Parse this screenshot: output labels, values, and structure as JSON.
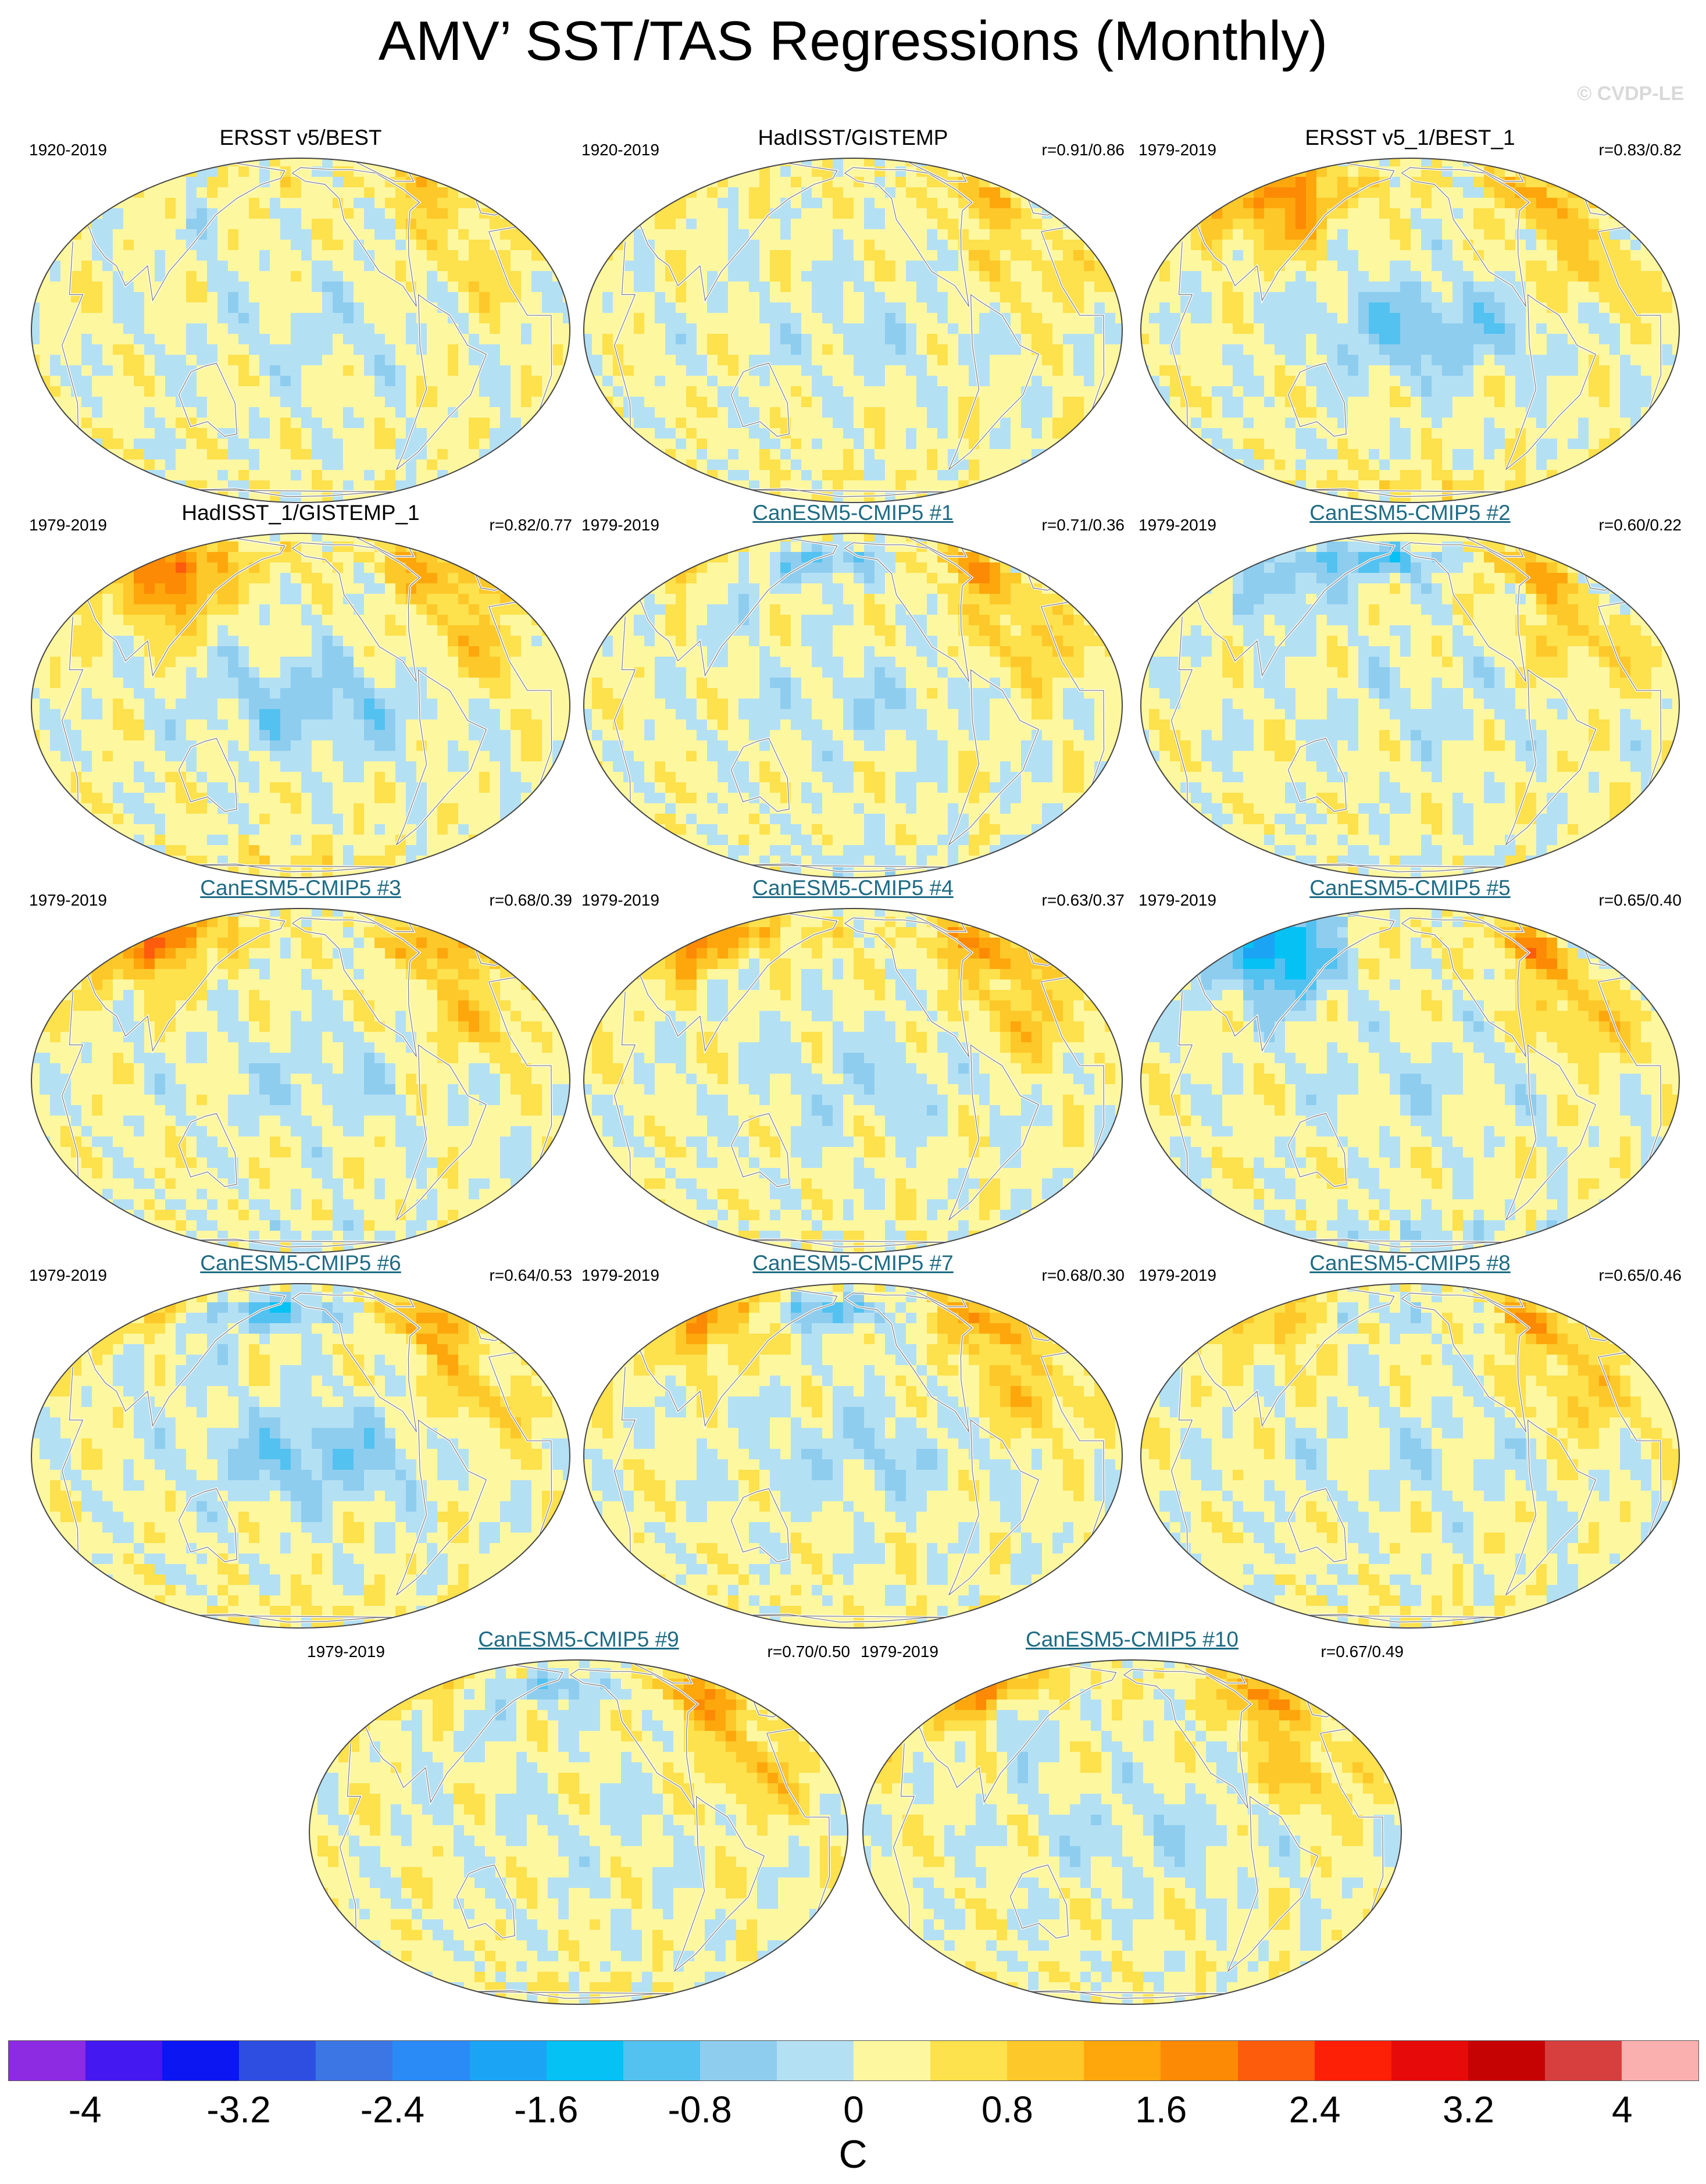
{
  "title": "AMV’ SST/TAS Regressions (Monthly)",
  "watermark": "© CVDP-LE",
  "panels": [
    {
      "title": "ERSST v5/BEST",
      "years": "1920-2019",
      "corr": "",
      "kind": "obs",
      "pattern": {
        "natl": 0.9,
        "npac": 0.2,
        "trop": -0.3,
        "eur": 0.1,
        "asia": -0.2,
        "south": 0.1
      }
    },
    {
      "title": "HadISST/GISTEMP",
      "years": "1920-2019",
      "corr": "r=0.91/0.86",
      "kind": "obs",
      "pattern": {
        "natl": 1.0,
        "npac": 0.2,
        "trop": -0.3,
        "eur": 0.2,
        "asia": -0.1,
        "south": 0.2
      }
    },
    {
      "title": "ERSST v5_1/BEST_1",
      "years": "1979-2019",
      "corr": "r=0.83/0.82",
      "kind": "obs",
      "pattern": {
        "natl": 1.3,
        "npac": 0.4,
        "trop": -0.9,
        "eur": 1.4,
        "asia": 1.0,
        "south": 0.5
      }
    },
    {
      "title": "HadISST_1/GISTEMP_1",
      "years": "1979-2019",
      "corr": "r=0.82/0.77",
      "kind": "obs",
      "pattern": {
        "natl": 1.4,
        "npac": 0.5,
        "trop": -0.8,
        "eur": 1.6,
        "asia": 1.1,
        "south": 0.4
      }
    },
    {
      "title": "CanESM5-CMIP5 #1",
      "years": "1979-2019",
      "corr": "r=0.71/0.36",
      "kind": "model",
      "pattern": {
        "natl": 1.4,
        "npac": -1.0,
        "trop": -0.4,
        "eur": 0.4,
        "asia": -0.4,
        "south": -0.3
      }
    },
    {
      "title": "CanESM5-CMIP5 #2",
      "years": "1979-2019",
      "corr": "r=0.60/0.22",
      "kind": "model",
      "pattern": {
        "natl": 1.3,
        "npac": -1.2,
        "trop": -0.3,
        "eur": -0.6,
        "asia": -0.5,
        "south": -0.2
      }
    },
    {
      "title": "CanESM5-CMIP5 #3",
      "years": "1979-2019",
      "corr": "r=0.68/0.39",
      "kind": "model",
      "pattern": {
        "natl": 1.3,
        "npac": 0.3,
        "trop": -0.4,
        "eur": 1.8,
        "asia": 0.2,
        "south": -0.2
      }
    },
    {
      "title": "CanESM5-CMIP5 #4",
      "years": "1979-2019",
      "corr": "r=0.63/0.37",
      "kind": "model",
      "pattern": {
        "natl": 1.6,
        "npac": 0.3,
        "trop": -0.4,
        "eur": 1.6,
        "asia": -0.2,
        "south": 0.1
      }
    },
    {
      "title": "CanESM5-CMIP5 #5",
      "years": "1979-2019",
      "corr": "r=0.65/0.40",
      "kind": "model",
      "pattern": {
        "natl": 1.6,
        "npac": 0.2,
        "trop": -0.3,
        "eur": -1.8,
        "asia": -1.2,
        "south": -0.5
      }
    },
    {
      "title": "CanESM5-CMIP5 #6",
      "years": "1979-2019",
      "corr": "r=0.64/0.53",
      "kind": "model",
      "pattern": {
        "natl": 1.4,
        "npac": -1.2,
        "trop": -0.9,
        "eur": 0.5,
        "asia": -0.3,
        "south": 0.3
      }
    },
    {
      "title": "CanESM5-CMIP5 #7",
      "years": "1979-2019",
      "corr": "r=0.68/0.30",
      "kind": "model",
      "pattern": {
        "natl": 1.5,
        "npac": -1.1,
        "trop": -0.5,
        "eur": 1.3,
        "asia": 0.3,
        "south": 0.2
      }
    },
    {
      "title": "CanESM5-CMIP5 #8",
      "years": "1979-2019",
      "corr": "r=0.65/0.46",
      "kind": "model",
      "pattern": {
        "natl": 1.4,
        "npac": -0.3,
        "trop": -0.3,
        "eur": 0.8,
        "asia": 0.2,
        "south": 0.2
      }
    },
    {
      "title": "CanESM5-CMIP5 #9",
      "years": "1979-2019",
      "corr": "r=0.70/0.50",
      "kind": "model",
      "pattern": {
        "natl": 1.6,
        "npac": -0.8,
        "trop": -0.2,
        "eur": 0.5,
        "asia": -0.3,
        "south": 0.2
      }
    },
    {
      "title": "CanESM5-CMIP5 #10",
      "years": "1979-2019",
      "corr": "r=0.67/0.49",
      "kind": "model",
      "pattern": {
        "natl": 1.5,
        "npac": 0.2,
        "trop": -0.4,
        "eur": 1.4,
        "asia": -0.6,
        "south": 0.1
      }
    }
  ],
  "colorbar": {
    "levels": [
      -4.0,
      -3.6,
      -3.2,
      -2.8,
      -2.4,
      -2.0,
      -1.6,
      -1.2,
      -0.8,
      -0.4,
      0,
      0.4,
      0.8,
      1.2,
      1.6,
      2.0,
      2.4,
      2.8,
      3.2,
      3.6,
      4.0
    ],
    "colors": [
      "#8d2be2",
      "#4418f0",
      "#0b16f3",
      "#2d4ee0",
      "#3b76e4",
      "#2a8bf6",
      "#1ca4f4",
      "#06c1f4",
      "#53c2f0",
      "#8fcdef",
      "#b4e0f4",
      "#fdf7a0",
      "#fde14d",
      "#fdc829",
      "#fda70d",
      "#fd8a04",
      "#fd5c0c",
      "#fd2006",
      "#e60a0a",
      "#c50303",
      "#d73e3e",
      "#fbb0b0"
    ],
    "tick_labels": [
      "-4",
      "-3.2",
      "-2.4",
      "-1.6",
      "-0.8",
      "0",
      "0.8",
      "1.6",
      "2.4",
      "3.2",
      "4"
    ],
    "units": "C"
  }
}
